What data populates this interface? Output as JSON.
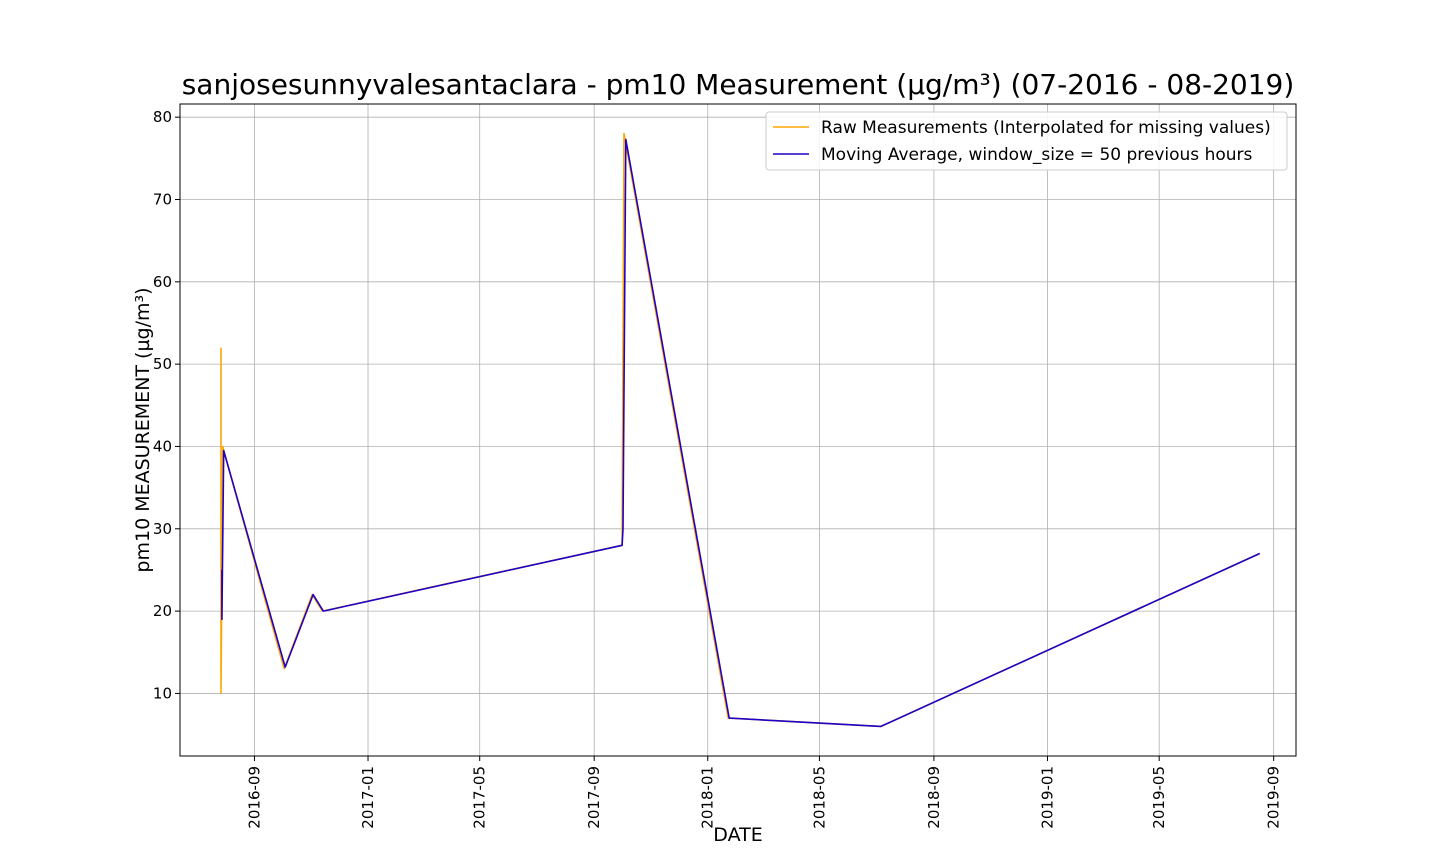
{
  "chart_data": {
    "type": "line",
    "title": "sanjosesunnyvalesantaclara - pm10 Measurement (µg/m³) (07-2016 - 08-2019)",
    "xlabel": "DATE",
    "ylabel": "pm10 MEASUREMENT (µg/m³)",
    "x_type": "date",
    "xlim": [
      "2016-06-13",
      "2019-09-25"
    ],
    "ylim": [
      2.4,
      81.6
    ],
    "grid": true,
    "legend_position": "top-right",
    "x_ticks": [
      "2016-09",
      "2017-01",
      "2017-05",
      "2017-09",
      "2018-01",
      "2018-05",
      "2018-09",
      "2019-01",
      "2019-05",
      "2019-09"
    ],
    "y_ticks": [
      10,
      20,
      30,
      40,
      50,
      60,
      70,
      80
    ],
    "series": [
      {
        "name": "Raw Measurements (Interpolated for missing values)",
        "color": "#ffa500",
        "points": [
          [
            "2016-07-27",
            52
          ],
          [
            "2016-07-27",
            10
          ],
          [
            "2016-07-28",
            25
          ],
          [
            "2016-07-28",
            19
          ],
          [
            "2016-07-29",
            40
          ],
          [
            "2016-07-30",
            39.5
          ],
          [
            "2016-10-03",
            13
          ],
          [
            "2016-11-02",
            22
          ],
          [
            "2016-11-13",
            20
          ],
          [
            "2017-10-01",
            28
          ],
          [
            "2017-10-03",
            78
          ],
          [
            "2018-01-23",
            7
          ],
          [
            "2018-07-06",
            6
          ],
          [
            "2019-08-17",
            27
          ]
        ]
      },
      {
        "name": "Moving Average, window_size = 50 previous hours",
        "color": "#1f00c8",
        "points": [
          [
            "2016-07-28",
            25
          ],
          [
            "2016-07-28",
            19
          ],
          [
            "2016-07-30",
            39.5
          ],
          [
            "2016-10-04",
            13.2
          ],
          [
            "2016-11-03",
            22
          ],
          [
            "2016-11-14",
            20
          ],
          [
            "2017-10-01",
            28
          ],
          [
            "2017-10-02",
            30
          ],
          [
            "2017-10-05",
            77.3
          ],
          [
            "2018-01-24",
            7
          ],
          [
            "2018-07-06",
            6
          ],
          [
            "2019-08-17",
            27
          ]
        ]
      }
    ]
  }
}
